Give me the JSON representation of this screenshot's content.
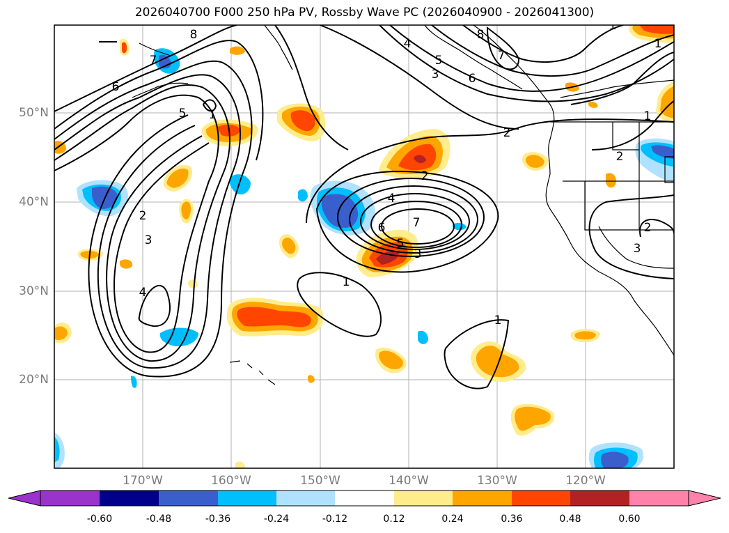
{
  "title": "2026040700 F000 250 hPa PV, Rossby Wave PC (2026040900 - 2026041300)",
  "lat_labels": [
    "50°N",
    "40°N",
    "30°N",
    "20°N"
  ],
  "lon_labels": [
    "170°W",
    "160°W",
    "150°W",
    "140°W",
    "130°W",
    "120°W"
  ],
  "colorbar": {
    "ticks": [
      "-0.60",
      "-0.48",
      "-0.36",
      "-0.24",
      "-0.12",
      "0.12",
      "0.24",
      "0.36",
      "0.48",
      "0.60"
    ],
    "colors": [
      "#9933cc",
      "#00008b",
      "#3a5fcd",
      "#00bfff",
      "#b0e2ff",
      "#ffffff",
      "#ffec8b",
      "#ffa500",
      "#ff4500",
      "#b22222",
      "#ff82ab"
    ]
  },
  "contour_labels": [
    "8",
    "7",
    "6",
    "5",
    "4",
    "3",
    "2",
    "1",
    "8",
    "5",
    "4",
    "3",
    "6",
    "7",
    "2",
    "1",
    "1",
    "2",
    "3",
    "4",
    "5",
    "6",
    "7",
    "1",
    "1",
    "2",
    "3",
    "1",
    "2"
  ]
}
